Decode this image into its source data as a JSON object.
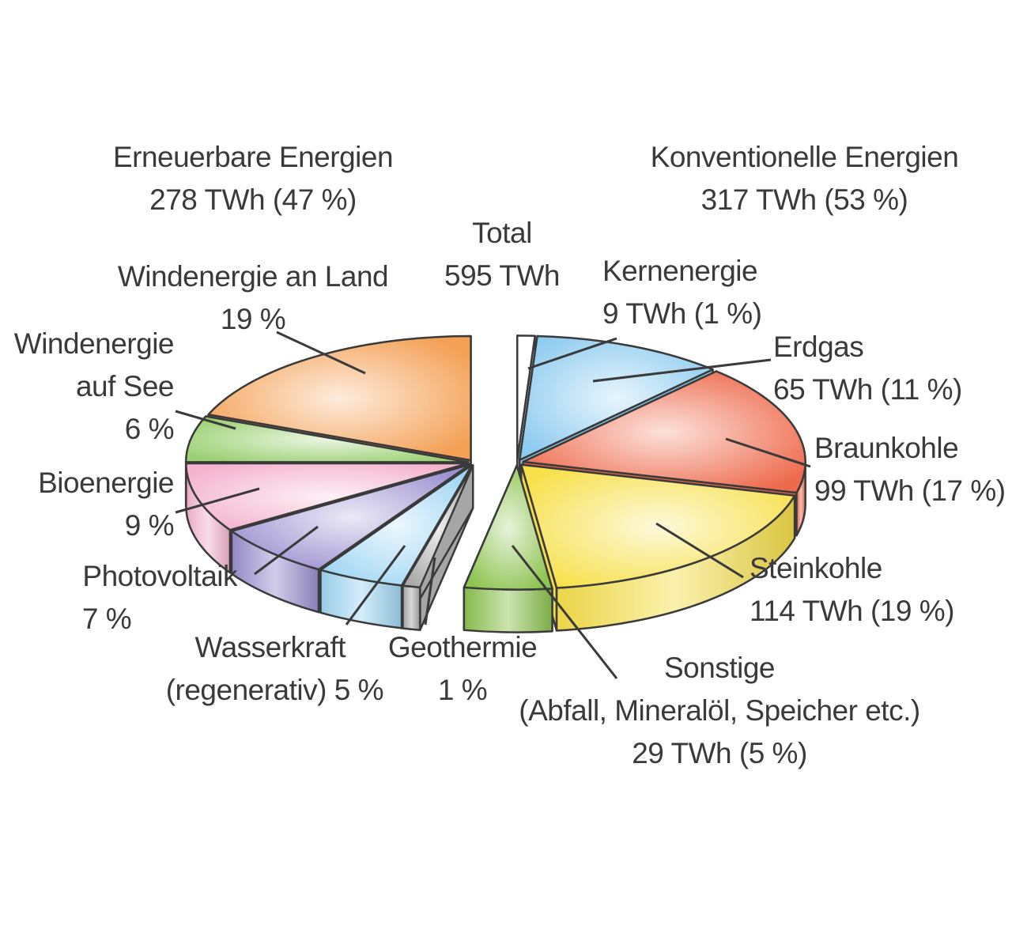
{
  "chart_data": {
    "type": "pie",
    "title": "",
    "total": {
      "line1": "Total",
      "line2": "595 TWh",
      "value_twh": 595
    },
    "groups": [
      {
        "key": "renewable",
        "line1": "Erneuerbare Energien",
        "line2": "278 TWh (47 %)",
        "value_twh": 278,
        "percent": 47
      },
      {
        "key": "conventional",
        "line1": "Konventionelle Energien",
        "line2": "317 TWh (53 %)",
        "value_twh": 317,
        "percent": 53
      }
    ],
    "slices": [
      {
        "key": "kern",
        "group": "conventional",
        "percent": 1,
        "value_twh": 9,
        "color": "#ffffff",
        "lines": [
          "Kernenergie",
          "9 TWh (1 %)"
        ]
      },
      {
        "key": "erdgas",
        "group": "conventional",
        "percent": 11,
        "value_twh": 65,
        "color": "#8ecbf0",
        "lines": [
          "Erdgas",
          "65 TWh (11 %)"
        ]
      },
      {
        "key": "braun",
        "group": "conventional",
        "percent": 17,
        "value_twh": 99,
        "color": "#ee6a4c",
        "lines": [
          "Braunkohle",
          "99 TWh (17 %)"
        ]
      },
      {
        "key": "stein",
        "group": "conventional",
        "percent": 19,
        "value_twh": 114,
        "color": "#f7e04a",
        "lines": [
          "Steinkohle",
          "114 TWh (19 %)"
        ]
      },
      {
        "key": "sonst",
        "group": "conventional",
        "percent": 5,
        "value_twh": 29,
        "color": "#8dc34f",
        "lines": [
          "Sonstige",
          "(Abfall, Mineralöl, Speicher etc.)",
          "29 TWh (5 %)"
        ]
      },
      {
        "key": "geo",
        "group": "renewable",
        "percent": 1,
        "color": "#a9a9a9",
        "lines": [
          "Geothermie",
          "1 %"
        ]
      },
      {
        "key": "wasser",
        "group": "renewable",
        "percent": 5,
        "color": "#9fd6f4",
        "lines": [
          "Wasserkraft",
          "(regenerativ) 5 %"
        ]
      },
      {
        "key": "pv",
        "group": "renewable",
        "percent": 7,
        "color": "#9b8fd0",
        "lines": [
          "Photovoltaik",
          "7 %"
        ]
      },
      {
        "key": "bio",
        "group": "renewable",
        "percent": 9,
        "color": "#f4b3cf",
        "lines": [
          "Bioenergie",
          "9 %"
        ]
      },
      {
        "key": "see",
        "group": "renewable",
        "percent": 6,
        "color": "#9bd073",
        "lines": [
          "Windenergie",
          "auf See",
          "6 %"
        ]
      },
      {
        "key": "land",
        "group": "renewable",
        "percent": 19,
        "color": "#f4a055",
        "lines": [
          "Windenergie an Land",
          "19 %"
        ]
      }
    ]
  }
}
